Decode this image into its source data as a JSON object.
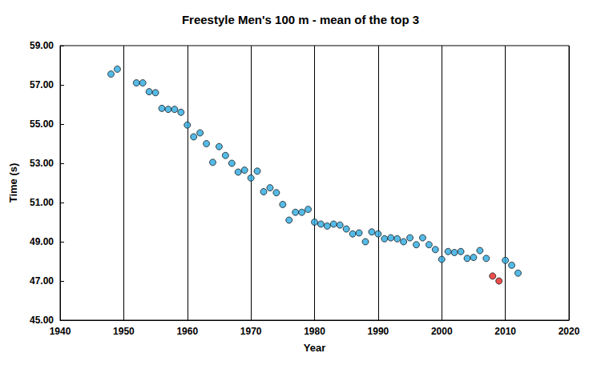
{
  "chart_data": {
    "type": "scatter",
    "title": "Freestyle Men's 100 m - mean of the top 3",
    "x_label": "Year",
    "y_label": "Time (s)",
    "xlim": [
      1940,
      2020
    ],
    "xticks": [
      1940,
      1950,
      1960,
      1970,
      1980,
      1990,
      2000,
      2010,
      2020
    ],
    "ylim": [
      45,
      59
    ],
    "yticks": [
      {
        "value": 45,
        "label": "45.00"
      },
      {
        "value": 47,
        "label": "47.00"
      },
      {
        "value": 49,
        "label": "49.00"
      },
      {
        "value": 51,
        "label": "51.00"
      },
      {
        "value": 53,
        "label": "53.00"
      },
      {
        "value": 55,
        "label": "55.00"
      },
      {
        "value": 57,
        "label": "57.00"
      },
      {
        "value": 59,
        "label": "59.00"
      }
    ],
    "grid": "x",
    "marker": "circle",
    "series": [
      {
        "color": "#2aa9e0",
        "x": [
          1948,
          1949,
          1952,
          1953,
          1954,
          1955,
          1956,
          1957,
          1958,
          1959,
          1960,
          1961,
          1962,
          1963,
          1964,
          1965,
          1966,
          1967,
          1968,
          1969,
          1970,
          1971,
          1972,
          1973,
          1974,
          1975,
          1976,
          1977,
          1978,
          1979,
          1980,
          1981,
          1982,
          1983,
          1984,
          1985,
          1986,
          1987,
          1988,
          1989,
          1990,
          1991,
          1992,
          1993,
          1994,
          1995,
          1996,
          1997,
          1998,
          1999,
          2000,
          2001,
          2002,
          2003,
          2004,
          2005,
          2006,
          2007,
          2010,
          2011,
          2012
        ],
        "values": [
          57.55,
          57.8,
          57.1,
          57.1,
          56.65,
          56.6,
          55.8,
          55.75,
          55.75,
          55.6,
          54.95,
          54.35,
          54.55,
          54.0,
          53.05,
          53.85,
          53.4,
          53.0,
          52.55,
          52.65,
          52.25,
          52.6,
          51.55,
          51.75,
          51.5,
          50.9,
          50.1,
          50.5,
          50.5,
          50.65,
          50.0,
          49.9,
          49.8,
          49.9,
          49.85,
          49.65,
          49.4,
          49.45,
          49.0,
          49.5,
          49.4,
          49.15,
          49.2,
          49.15,
          49.0,
          49.2,
          48.85,
          49.2,
          48.85,
          48.6,
          48.1,
          48.5,
          48.45,
          48.5,
          48.15,
          48.2,
          48.55,
          48.15,
          48.05,
          47.8,
          47.4
        ]
      },
      {
        "color": "#e8221e",
        "x": [
          2008,
          2009
        ],
        "values": [
          47.25,
          47.0
        ]
      }
    ]
  }
}
